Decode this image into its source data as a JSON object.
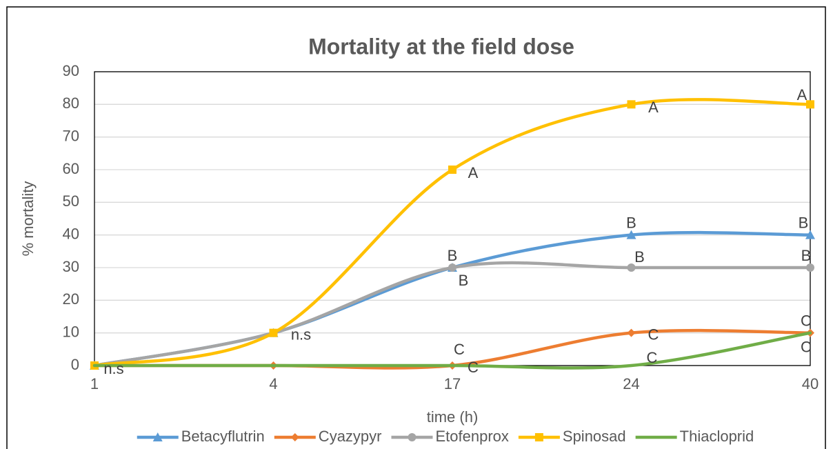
{
  "chart_data": {
    "type": "line",
    "title": "Mortality at the field dose",
    "x_label": "time (h)",
    "y_label": "% mortality",
    "categories": [
      "1",
      "4",
      "17",
      "24",
      "40"
    ],
    "ylim": [
      0,
      90
    ],
    "yticks": [
      0,
      10,
      20,
      30,
      40,
      50,
      60,
      70,
      80,
      90
    ],
    "grid": true,
    "smooth": true,
    "legend": "bottom",
    "series": [
      {
        "name": "Betacyflutrin",
        "color": "#5b9bd5",
        "marker": "triangle",
        "values": [
          0,
          10,
          30,
          40,
          40
        ],
        "point_labels": [
          null,
          null,
          "B",
          "B",
          "B"
        ]
      },
      {
        "name": "Cyazypyr",
        "color": "#ed7d31",
        "marker": "diamond",
        "values": [
          0,
          0,
          0,
          10,
          10
        ],
        "point_labels": [
          null,
          null,
          "C",
          "C",
          "C"
        ]
      },
      {
        "name": "Etofenprox",
        "color": "#a5a5a5",
        "marker": "circle",
        "values": [
          0,
          10,
          30,
          30,
          30
        ],
        "point_labels": [
          null,
          null,
          "B",
          "B",
          "B"
        ]
      },
      {
        "name": "Spinosad",
        "color": "#ffc000",
        "marker": "square",
        "values": [
          0,
          10,
          60,
          80,
          80
        ],
        "point_labels": [
          "n.s",
          "n.s",
          "A",
          "A",
          "A"
        ]
      },
      {
        "name": "Thiacloprid",
        "color": "#70ad47",
        "marker": "none",
        "values": [
          0,
          0,
          0,
          0,
          10
        ],
        "point_labels": [
          null,
          null,
          "C",
          "C",
          "C"
        ]
      }
    ]
  }
}
